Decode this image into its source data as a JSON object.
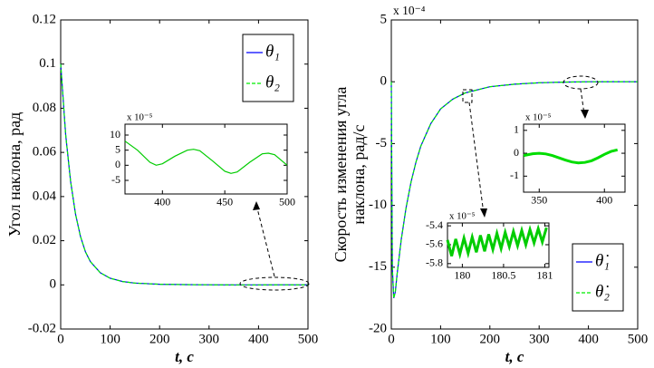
{
  "chart_data": [
    {
      "type": "line",
      "ylabel": [
        "Угол наклона, рад"
      ],
      "xlabel": "t, c",
      "legend": "upper right",
      "x": [
        0,
        10,
        20,
        30,
        40,
        50,
        60,
        80,
        100,
        125,
        150,
        200,
        250,
        300,
        350,
        400,
        450,
        500
      ],
      "series": [
        {
          "name": "θ₁",
          "color": "#0000ff",
          "values": [
            0.1,
            0.068,
            0.047,
            0.032,
            0.022,
            0.015,
            0.0105,
            0.0055,
            0.003,
            0.0015,
            0.0008,
            0.0003,
            0.0001,
            3e-05,
            1e-05,
            0.0,
            3e-05,
            0.0
          ]
        },
        {
          "name": "θ₂",
          "color": "#00ee00",
          "values": [
            0.1,
            0.068,
            0.047,
            0.032,
            0.022,
            0.015,
            0.0105,
            0.0055,
            0.003,
            0.0015,
            0.0008,
            0.0003,
            0.0001,
            3e-05,
            1e-05,
            0.0,
            3e-05,
            0.0
          ]
        }
      ],
      "xlim": [
        0,
        500
      ],
      "xticks": [
        0,
        100,
        200,
        300,
        400,
        500
      ],
      "ylim": [
        -0.02,
        0.12
      ],
      "yticks": [
        -0.02,
        0,
        0.02,
        0.04,
        0.06,
        0.08,
        0.1,
        0.12
      ]
    },
    {
      "type": "line",
      "ylabel": [
        "Скорость изменения угла",
        "наклона, рад/с"
      ],
      "xlabel": "t, c",
      "legend": "lower right",
      "multiplier": "x 10⁻⁴",
      "x": [
        0,
        2,
        5,
        8,
        12,
        20,
        30,
        40,
        50,
        60,
        80,
        100,
        125,
        150,
        200,
        250,
        300,
        350,
        400,
        450,
        500
      ],
      "series": [
        {
          "name": "θ̇₁",
          "color": "#0000ff",
          "values": [
            0,
            -15,
            -17.5,
            -17,
            -15.5,
            -12.8,
            -10.2,
            -8.1,
            -6.5,
            -5.2,
            -3.4,
            -2.2,
            -1.4,
            -0.9,
            -0.4,
            -0.2,
            -0.08,
            -0.03,
            0,
            0.01,
            0
          ]
        },
        {
          "name": "θ̇₂",
          "color": "#00ee00",
          "values": [
            0,
            -15,
            -17.5,
            -17,
            -15.5,
            -12.8,
            -10.2,
            -8.1,
            -6.5,
            -5.2,
            -3.4,
            -2.2,
            -1.4,
            -0.9,
            -0.4,
            -0.2,
            -0.08,
            -0.03,
            0,
            0.01,
            0
          ]
        }
      ],
      "xlim": [
        0,
        500
      ],
      "xticks": [
        0,
        100,
        200,
        300,
        400,
        500
      ],
      "ylim": [
        -20,
        5
      ],
      "yticks": [
        -20,
        -15,
        -10,
        -5,
        0,
        5
      ]
    },
    {
      "type": "line",
      "multiplier": "x 10⁻⁵",
      "color": "#00cc00",
      "x": [
        370,
        380,
        390,
        395,
        400,
        410,
        420,
        425,
        430,
        440,
        450,
        455,
        460,
        470,
        480,
        485,
        490,
        500
      ],
      "values": [
        8,
        5,
        1,
        0,
        0.5,
        3,
        5,
        5.3,
        4.8,
        1.5,
        -2,
        -2.7,
        -2.2,
        1,
        3.8,
        4,
        3.5,
        0
      ],
      "xlim": [
        370,
        500
      ],
      "xticks": [
        400,
        450,
        500
      ],
      "ylim": [
        -9.5,
        13.6
      ],
      "yticks": [
        -5,
        0,
        5,
        10
      ]
    },
    {
      "type": "line",
      "multiplier": "x 10⁻⁵",
      "color": "#00cc00",
      "x": [
        179.82,
        179.87,
        179.92,
        179.97,
        180.02,
        180.07,
        180.12,
        180.17,
        180.22,
        180.27,
        180.32,
        180.37,
        180.42,
        180.47,
        180.52,
        180.57,
        180.62,
        180.67,
        180.72,
        180.77,
        180.82,
        180.87,
        180.92,
        180.97,
        181.02
      ],
      "values": [
        -5.55,
        -5.72,
        -5.54,
        -5.7,
        -5.53,
        -5.69,
        -5.52,
        -5.68,
        -5.5,
        -5.67,
        -5.49,
        -5.65,
        -5.48,
        -5.64,
        -5.47,
        -5.62,
        -5.46,
        -5.61,
        -5.45,
        -5.6,
        -5.44,
        -5.58,
        -5.43,
        -5.57,
        -5.42
      ],
      "xlim": [
        179.82,
        181.05
      ],
      "xticks": [
        180,
        180.5,
        181
      ],
      "ylim": [
        -5.84,
        -5.37
      ],
      "yticks": [
        -5.4,
        -5.6,
        -5.8
      ]
    },
    {
      "type": "line",
      "multiplier": "x 10⁻⁵",
      "color": "#00dd00",
      "x": [
        338,
        345,
        350,
        355,
        360,
        365,
        370,
        375,
        380,
        385,
        390,
        395,
        400,
        405,
        410
      ],
      "values": [
        -0.1,
        -0.02,
        0,
        -0.03,
        -0.1,
        -0.2,
        -0.3,
        -0.38,
        -0.42,
        -0.4,
        -0.33,
        -0.2,
        -0.05,
        0.08,
        0.15
      ],
      "xlim": [
        338,
        415.8
      ],
      "xticks": [
        350,
        400
      ],
      "ylim": [
        -1.7,
        1.27
      ],
      "yticks": [
        -1,
        0,
        1
      ]
    }
  ]
}
